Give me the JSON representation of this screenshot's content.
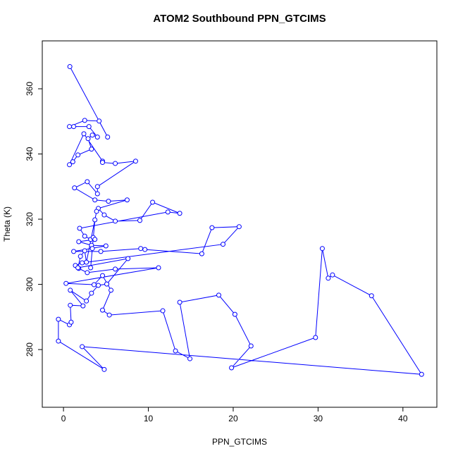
{
  "chart_data": {
    "type": "line",
    "title": "ATOM2 Southbound PPN_GTCIMS",
    "x_label": "PPN_GTCIMS",
    "y_label": "Theta (K)",
    "xlim": [
      -2.5,
      44
    ],
    "ylim": [
      262.3,
      374.7
    ],
    "xticks": [
      0,
      10,
      20,
      30,
      40
    ],
    "yticks": [
      280,
      300,
      320,
      340,
      360
    ],
    "markers": true,
    "x": [
      0.75,
      5.2,
      4.2,
      2.5,
      0.7,
      1.2,
      3.0,
      4.0,
      3.4,
      2.9,
      3.3,
      1.7,
      1.1,
      0.7,
      2.4,
      4.6,
      4.6,
      6.1,
      8.5,
      4.0,
      4.0,
      2.8,
      1.3,
      3.7,
      5.3,
      7.5,
      4.1,
      4.8,
      6.1,
      9.0,
      10.5,
      13.7,
      12.3,
      1.9,
      2.5,
      3.2,
      3.5,
      3.7,
      1.8,
      3.3,
      5.0,
      1.2,
      4.4,
      9.1,
      9.6,
      16.3,
      17.5,
      20.7,
      18.8,
      2.2,
      1.4,
      1.8,
      2.8,
      6.1,
      11.2,
      0.3,
      3.6,
      4.6,
      5.6,
      4.6,
      5.4,
      11.7,
      13.2,
      14.9,
      13.7,
      18.3,
      20.2,
      22.1,
      19.8,
      29.7,
      30.5,
      31.2,
      31.7,
      36.3,
      42.2,
      2.2,
      4.8,
      -0.6,
      -0.6,
      0.7,
      0.9,
      0.8,
      2.3,
      0.8,
      2.7,
      3.3,
      4.1,
      5.1,
      7.6,
      1.7,
      2.0,
      2.5,
      2.7,
      3.9,
      3.7,
      3.4,
      3.2
    ],
    "series": [
      {
        "color": "#0000ff",
        "values": [
          366.8,
          345.2,
          350.1,
          350.3,
          348.4,
          348.4,
          348.4,
          345.2,
          345.8,
          344.7,
          341.5,
          339.7,
          337.6,
          336.7,
          346.2,
          337.8,
          337.4,
          337.1,
          337.8,
          330.0,
          327.8,
          331.5,
          329.6,
          325.9,
          325.5,
          325.9,
          323.3,
          321.3,
          319.4,
          319.6,
          325.2,
          321.8,
          322.2,
          317.2,
          314.8,
          313.8,
          314.4,
          313.8,
          313.1,
          312.0,
          311.8,
          310.1,
          310.1,
          311.0,
          310.7,
          309.4,
          317.4,
          317.7,
          312.3,
          306.6,
          305.8,
          304.9,
          303.6,
          304.7,
          305.1,
          300.3,
          299.9,
          302.7,
          298.2,
          292.1,
          290.6,
          291.9,
          279.6,
          277.2,
          294.5,
          296.7,
          290.8,
          281.1,
          274.4,
          283.7,
          311.0,
          301.9,
          302.9,
          296.5,
          272.4,
          280.9,
          273.9,
          282.6,
          289.3,
          287.6,
          288.4,
          293.6,
          293.4,
          298.2,
          294.9,
          297.3,
          299.7,
          300.1,
          307.9,
          305.1,
          308.6,
          310.3,
          306.8,
          322.4,
          319.8,
          311.0,
          305.1
        ]
      }
    ]
  }
}
